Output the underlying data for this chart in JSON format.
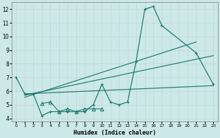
{
  "xlabel": "Humidex (Indice chaleur)",
  "background_color": "#cce8e8",
  "grid_color": "#c4d8d8",
  "line_color": "#1a7a6e",
  "xlim": [
    -0.5,
    23.5
  ],
  "ylim": [
    3.8,
    12.5
  ],
  "yticks": [
    4,
    5,
    6,
    7,
    8,
    9,
    10,
    11,
    12
  ],
  "xticks": [
    0,
    1,
    2,
    3,
    4,
    5,
    6,
    7,
    8,
    9,
    10,
    11,
    12,
    13,
    14,
    15,
    16,
    17,
    18,
    19,
    20,
    21,
    22,
    23
  ],
  "curve1_x": [
    0,
    1,
    2,
    3,
    4,
    5,
    6,
    7,
    8,
    9,
    10,
    11,
    12,
    13,
    14,
    15,
    16,
    17,
    21,
    23
  ],
  "curve1_y": [
    7.0,
    5.8,
    5.8,
    4.2,
    4.5,
    4.5,
    4.5,
    4.5,
    4.5,
    5.0,
    6.5,
    5.2,
    5.0,
    5.2,
    8.2,
    12.0,
    12.2,
    10.8,
    8.8,
    6.5
  ],
  "curve2_x": [
    3,
    4,
    5,
    6,
    7,
    8,
    9,
    10
  ],
  "curve2_y": [
    5.1,
    5.2,
    4.5,
    4.7,
    4.5,
    4.7,
    4.7,
    4.7
  ],
  "line1_x": [
    1,
    23
  ],
  "line1_y": [
    5.8,
    6.4
  ],
  "line2_x": [
    1,
    21
  ],
  "line2_y": [
    5.55,
    9.6
  ],
  "line3_x": [
    1,
    23
  ],
  "line3_y": [
    5.7,
    8.6
  ]
}
